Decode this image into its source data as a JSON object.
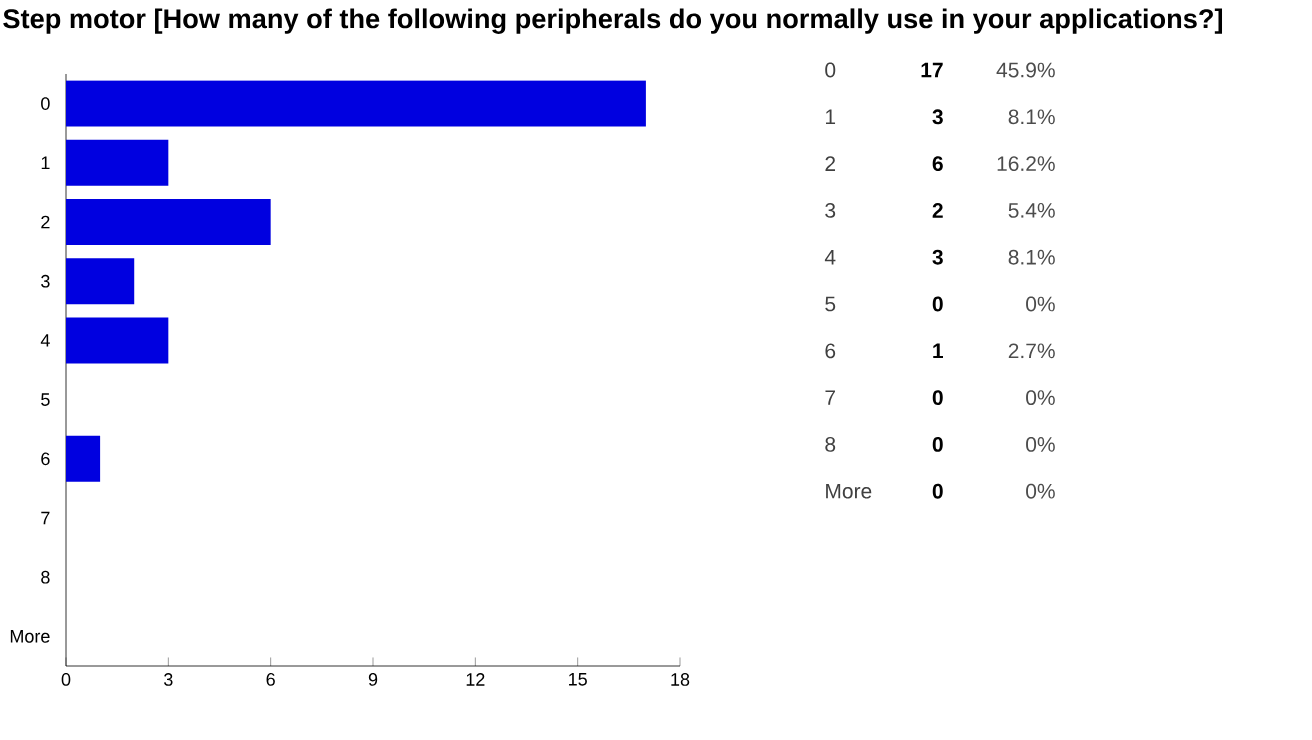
{
  "chart_data": {
    "type": "bar",
    "orientation": "horizontal",
    "title": "Step motor [How many of the following peripherals do you normally use in your applications?]",
    "categories": [
      "0",
      "1",
      "2",
      "3",
      "4",
      "5",
      "6",
      "7",
      "8",
      "More"
    ],
    "values": [
      17,
      3,
      6,
      2,
      3,
      0,
      1,
      0,
      0,
      0
    ],
    "annotations": [
      "17",
      "45.9%",
      "3",
      "8.1%",
      "6",
      "16.2%",
      "2",
      "5.4%",
      "3",
      "8.1%",
      "0",
      "0%",
      "1",
      "2.7%",
      "0",
      "0%",
      "0",
      "0%",
      "0",
      "0%"
    ],
    "color": "#0000e0",
    "xlim": [
      0,
      18
    ],
    "xticks": [
      0,
      3,
      6,
      9,
      12,
      15,
      18
    ],
    "grid": false
  }
}
